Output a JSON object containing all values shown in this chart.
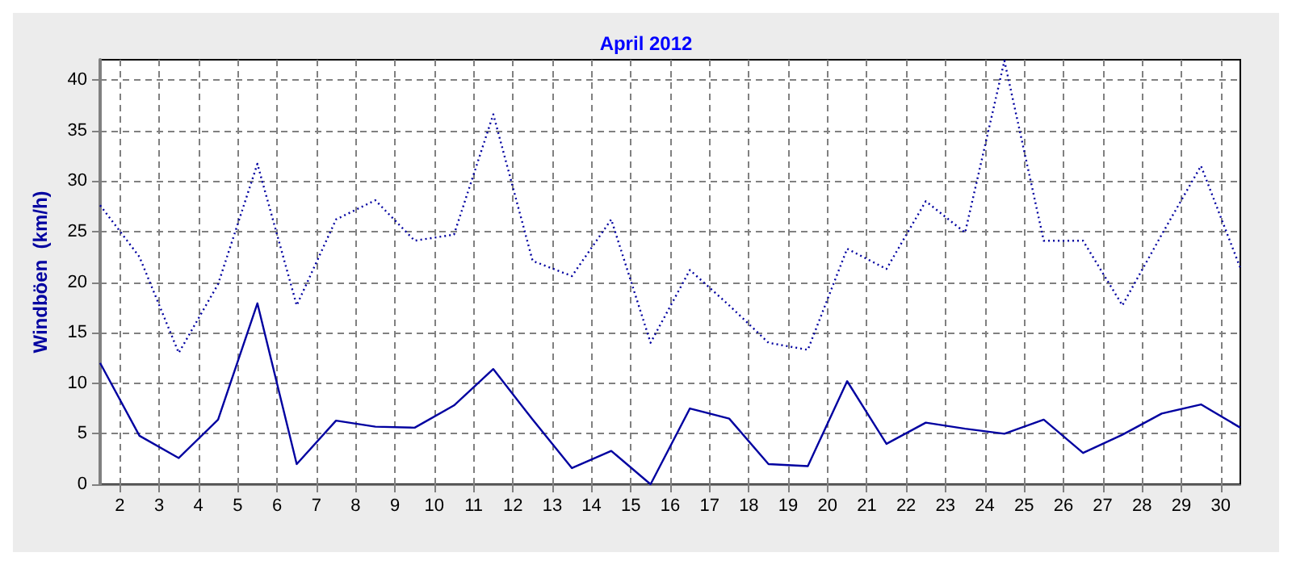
{
  "chart_data": {
    "type": "line",
    "title": "April 2012",
    "ylabel": "Windböen  (km/h)",
    "x": [
      1.5,
      2.5,
      3.5,
      4.5,
      5.5,
      6.5,
      7.5,
      8.5,
      9.5,
      10.5,
      11.5,
      12.5,
      13.5,
      14.5,
      15.5,
      16.5,
      17.5,
      18.5,
      19.5,
      20.5,
      21.5,
      22.5,
      23.5,
      24.5,
      25.5,
      26.5,
      27.5,
      28.5,
      29.5,
      30.5
    ],
    "series": [
      {
        "color": "#0000a0",
        "line_style": "dotted",
        "values": [
          27.6,
          22.5,
          13.0,
          19.8,
          31.7,
          17.7,
          26.2,
          28.1,
          24.1,
          24.7,
          36.6,
          22.1,
          20.6,
          26.2,
          14.0,
          21.2,
          17.7,
          14.0,
          13.3,
          23.3,
          21.3,
          28.0,
          24.9,
          41.9,
          24.1,
          24.1,
          17.7,
          24.7,
          31.5,
          21.4
        ]
      },
      {
        "color": "#0000a0",
        "line_style": "solid",
        "values": [
          12.0,
          4.8,
          2.6,
          6.4,
          17.9,
          2.0,
          6.3,
          5.7,
          5.6,
          7.8,
          11.4,
          6.4,
          1.6,
          3.3,
          0,
          7.5,
          6.5,
          2.0,
          1.8,
          10.2,
          4.0,
          6.1,
          5.5,
          5.0,
          6.4,
          3.1,
          4.9,
          7.0,
          7.9,
          5.6
        ]
      }
    ],
    "xlim": [
      1.5,
      30.5
    ],
    "xticks": [
      2,
      3,
      4,
      5,
      6,
      7,
      8,
      9,
      10,
      11,
      12,
      13,
      14,
      15,
      16,
      17,
      18,
      19,
      20,
      21,
      22,
      23,
      24,
      25,
      26,
      27,
      28,
      29,
      30
    ],
    "ylim": [
      0,
      42
    ],
    "yticks": [
      0,
      5,
      10,
      15,
      20,
      25,
      30,
      35,
      40
    ],
    "grid": true,
    "marker": "none"
  }
}
